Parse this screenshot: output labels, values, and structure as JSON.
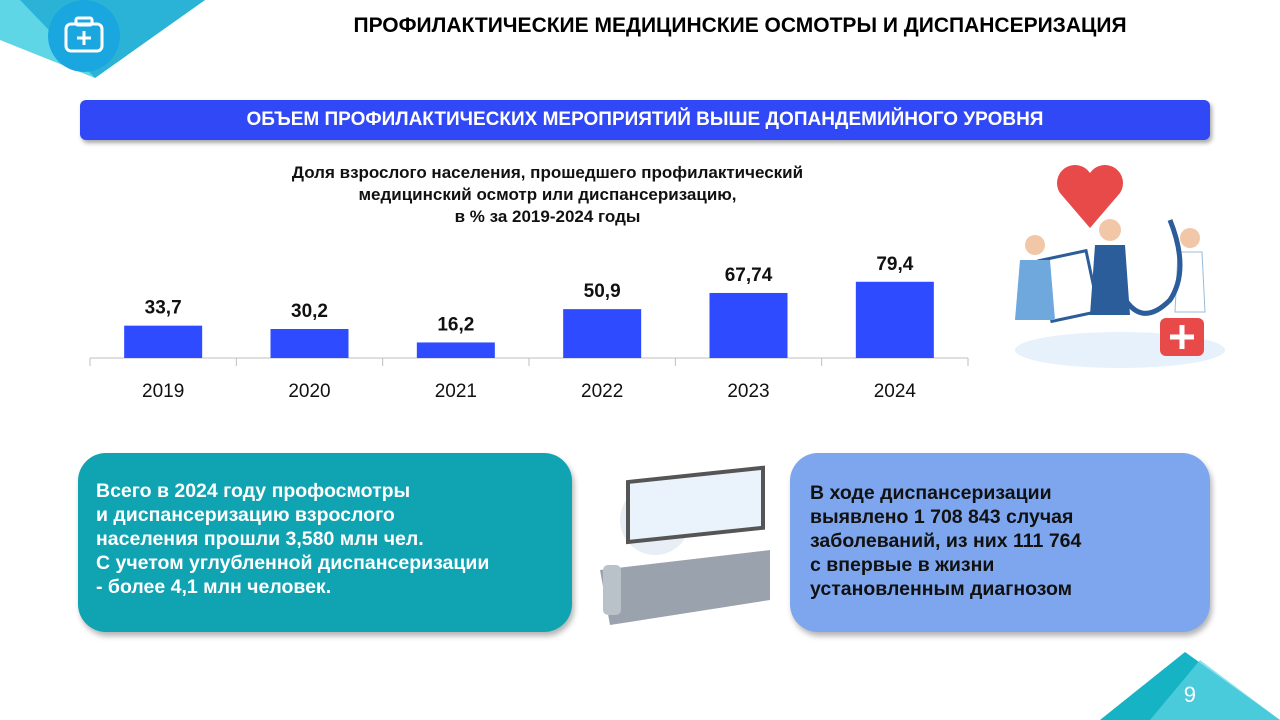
{
  "header": {
    "title": "ПРОФИЛАКТИЧЕСКИЕ МЕДИЦИНСКИЕ ОСМОТРЫ И ДИСПАНСЕРИЗАЦИЯ",
    "banner": "ОБЪЕМ ПРОФИЛАКТИЧЕСКИХ  МЕРОПРИЯТИЙ  ВЫШЕ ДОПАНДЕМИЙНОГО УРОВНЯ"
  },
  "chart_data": {
    "type": "bar",
    "title": "Доля взрослого населения, прошедшего профилактический\nмедицинский осмотр или диспансеризацию,\nв % за 2019-2024 годы",
    "categories": [
      "2019",
      "2020",
      "2021",
      "2022",
      "2023",
      "2024"
    ],
    "values": [
      33.7,
      30.2,
      16.2,
      50.9,
      67.74,
      79.4
    ],
    "value_labels": [
      "33,7",
      "30,2",
      "16,2",
      "50,9",
      "67,74",
      "79,4"
    ],
    "color": "#2e4bff"
  },
  "left_box": {
    "text": "Всего в 2024 году профосмотры\nи диспансеризацию  взрослого\nнаселения прошли 3,580 млн чел.\nС учетом углубленной диспансеризации\n- более 4,1 млн человек."
  },
  "right_box": {
    "text": "В ходе диспансеризации\nвыявлено  1 708 843 случая\nзаболеваний, из них 111 764\nс впервые в жизни\nустановленным диагнозом"
  },
  "page_number": "9"
}
